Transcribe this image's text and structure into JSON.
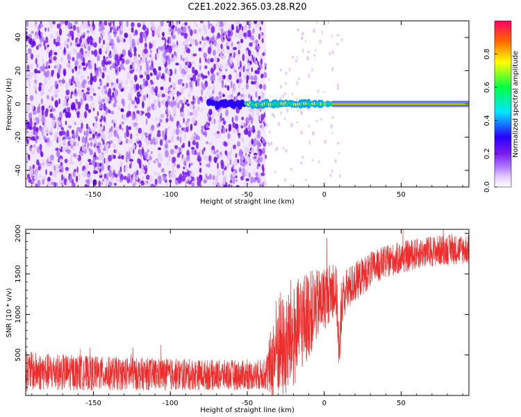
{
  "title": "C2E1.2022.365.03.28.R20",
  "colors": {
    "snr_line": "#ee2c2c",
    "background": "#ffffff",
    "axis": "#000000",
    "colormap": [
      "#ffffff",
      "#e4ccff",
      "#b07aff",
      "#7a1cf0",
      "#2a00ff",
      "#00e5ff",
      "#00ff44",
      "#ffff00",
      "#ff6600",
      "#ff0066"
    ]
  },
  "chart_data": [
    {
      "type": "heatmap",
      "title": "",
      "xlabel": "Height of straight line (km)",
      "ylabel": "Frequency (Hz)",
      "xlim": [
        -194,
        94
      ],
      "ylim": [
        -50,
        50
      ],
      "xticks": [
        "-150",
        "-100",
        "-50",
        "0",
        "50"
      ],
      "xtick_values": [
        -150,
        -100,
        -50,
        0,
        50
      ],
      "yticks": [
        "-40",
        "-20",
        "0",
        "20",
        "40"
      ],
      "ytick_values": [
        -40,
        -20,
        0,
        20,
        40
      ],
      "grid": false,
      "description_of_values": "Noise-filled spectrum for heights below -38 km; a narrow signal band centered at 0 Hz appears from about -75 km and becomes a solid saturated line from about 5 km to 94 km.",
      "signal_band": {
        "frequency_center_hz": 0,
        "start_km": -75,
        "saturated_from_km": 5,
        "end_km": 94
      },
      "noise_region": {
        "from_km": -194,
        "to_km": -38
      },
      "colorbar": {
        "label": "Normalized spectral amplitude",
        "range": [
          0.0,
          1.0
        ],
        "ticks": [
          "0.0",
          "0.2",
          "0.4",
          "0.6",
          "0.8"
        ],
        "tick_values": [
          0.0,
          0.2,
          0.4,
          0.6,
          0.8
        ]
      }
    },
    {
      "type": "line",
      "title": "",
      "xlabel": "Height of straight line (km)",
      "ylabel": "SNR (10 * v/v)",
      "xlim": [
        -194,
        94
      ],
      "ylim": [
        0,
        2050
      ],
      "xticks": [
        "-150",
        "-100",
        "-50",
        "0",
        "50"
      ],
      "xtick_values": [
        -150,
        -100,
        -50,
        0,
        50
      ],
      "yticks": [
        "500",
        "1000",
        "1500",
        "2000"
      ],
      "ytick_values": [
        500,
        1000,
        1500,
        2000
      ],
      "grid": false,
      "series": [
        {
          "color": "#ee2c2c",
          "x": [
            -194,
            -180,
            -160,
            -140,
            -120,
            -100,
            -80,
            -60,
            -45,
            -38,
            -34,
            -30,
            -27,
            -25,
            -22,
            -20,
            -15,
            -10,
            -5,
            0,
            5,
            8,
            10,
            11,
            12,
            15,
            20,
            30,
            40,
            50,
            60,
            70,
            80,
            94
          ],
          "y_center": [
            300,
            290,
            280,
            270,
            265,
            260,
            255,
            250,
            250,
            260,
            400,
            650,
            600,
            550,
            750,
            700,
            900,
            1000,
            1100,
            1200,
            1300,
            1250,
            400,
            1100,
            1200,
            1300,
            1400,
            1550,
            1650,
            1700,
            1750,
            1780,
            1800,
            1800
          ],
          "y_spread": [
            250,
            230,
            220,
            210,
            200,
            200,
            190,
            190,
            180,
            200,
            500,
            700,
            650,
            600,
            700,
            650,
            600,
            550,
            450,
            400,
            350,
            350,
            300,
            350,
            300,
            280,
            250,
            220,
            200,
            200,
            190,
            190,
            190,
            180
          ]
        }
      ]
    }
  ]
}
